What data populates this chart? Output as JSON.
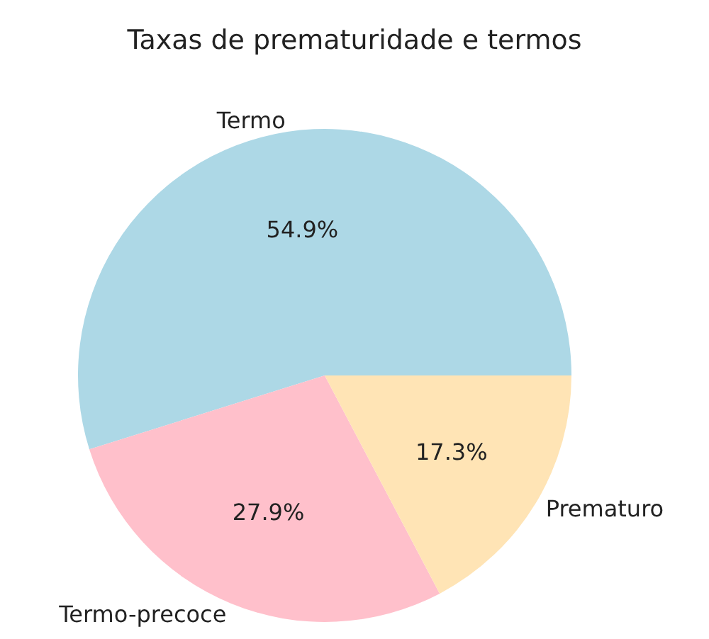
{
  "chart_data": {
    "type": "pie",
    "title": "Taxas de prematuridade e termos",
    "categories": [
      "Termo",
      "Termo-precoce",
      "Prematuro"
    ],
    "values": [
      54.9,
      27.9,
      17.3
    ],
    "colors": [
      "#add8e6",
      "#ffc0cb",
      "#ffe4b5"
    ],
    "value_labels": [
      "54.9%",
      "27.9%",
      "17.3%"
    ],
    "legend": false
  }
}
